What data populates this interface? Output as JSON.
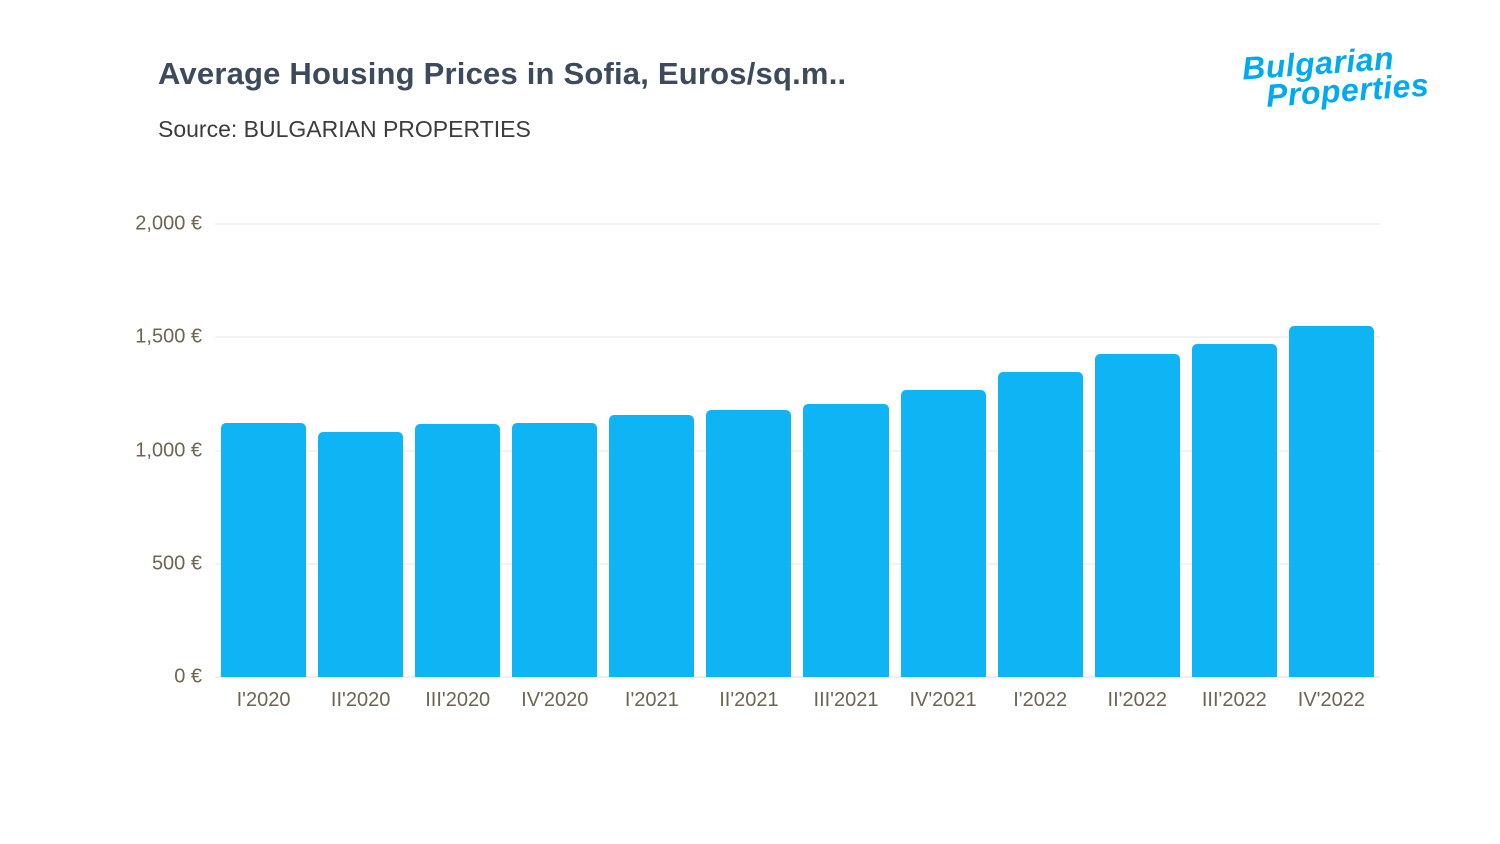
{
  "header": {
    "title": "Average Housing Prices in Sofia, Euros/sq.m..",
    "source": "Source: BULGARIAN PROPERTIES"
  },
  "logo": {
    "line1": "Bulgarian",
    "line2": "Properties",
    "color": "#00aaf0"
  },
  "colors": {
    "bar": "#0fb4f4",
    "title": "#3d4a5c",
    "axis_label": "#6e6453",
    "gridline": "#e7e7e7"
  },
  "chart_data": {
    "type": "bar",
    "title": "Average Housing Prices in Sofia, Euros/sq.m..",
    "source": "Source: BULGARIAN PROPERTIES",
    "categories": [
      "I'2020",
      "II'2020",
      "III'2020",
      "IV'2020",
      "I'2021",
      "II'2021",
      "III'2021",
      "IV'2021",
      "I'2022",
      "II'2022",
      "III'2022",
      "IV'2022"
    ],
    "values": [
      1120,
      1080,
      1115,
      1120,
      1155,
      1180,
      1205,
      1265,
      1345,
      1425,
      1470,
      1550
    ],
    "xlabel": "",
    "ylabel": "",
    "ylim": [
      0,
      2000
    ],
    "yticks": [
      0,
      500,
      1000,
      1500,
      2000
    ],
    "ytick_labels": [
      "0 €",
      "500 €",
      "1,000 €",
      "1,500 €",
      "2,000 €"
    ],
    "grid": "horizontal",
    "legend": "none"
  }
}
